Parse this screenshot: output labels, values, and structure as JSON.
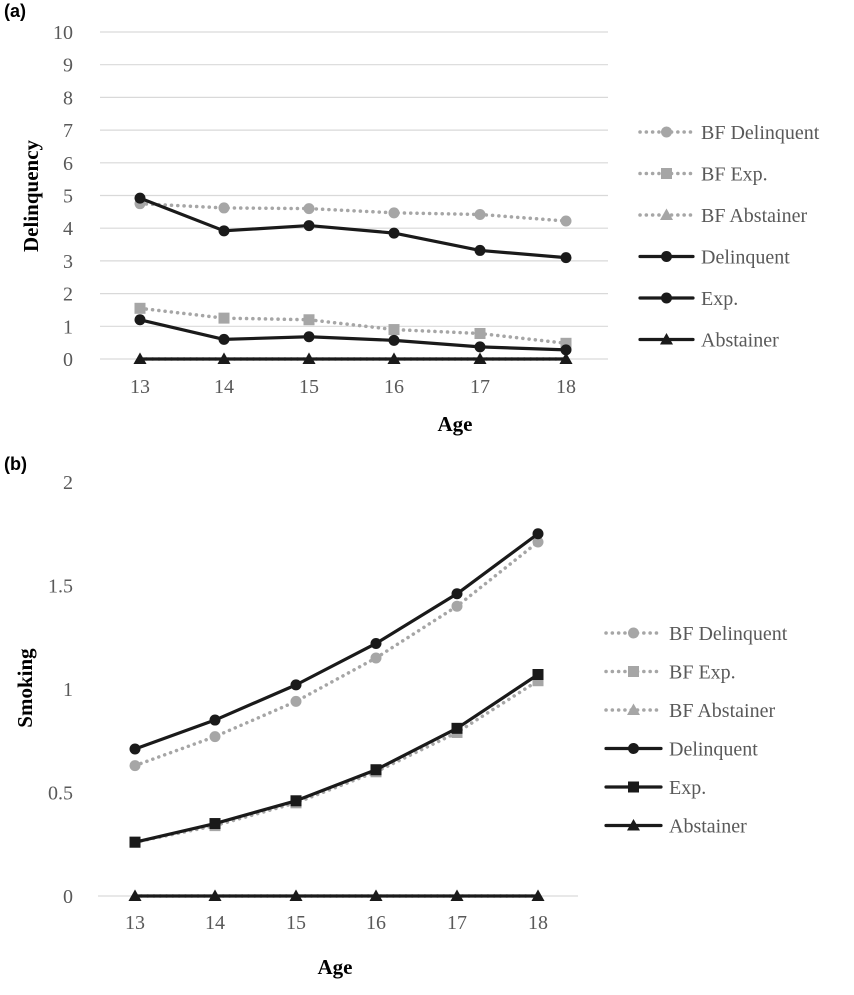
{
  "chart_data": [
    {
      "panel": "(a)",
      "type": "line",
      "xlabel": "Age",
      "ylabel": "Delinquency",
      "x": [
        13,
        14,
        15,
        16,
        17,
        18
      ],
      "ylim": [
        0,
        10
      ],
      "yticks": [
        "0",
        "1",
        "2",
        "3",
        "4",
        "5",
        "6",
        "7",
        "8",
        "9",
        "10"
      ],
      "grid": true,
      "legend_position": "right",
      "series": [
        {
          "name": "BF Delinquent",
          "values": [
            4.75,
            4.62,
            4.6,
            4.47,
            4.42,
            4.22
          ],
          "style": "dotted",
          "marker": "circle",
          "color": "#a6a6a6"
        },
        {
          "name": "BF Exp.",
          "values": [
            1.55,
            1.25,
            1.2,
            0.9,
            0.78,
            0.48
          ],
          "style": "dotted",
          "marker": "square",
          "color": "#a6a6a6"
        },
        {
          "name": "BF Abstainer",
          "values": [
            0,
            0,
            0,
            0,
            0,
            0
          ],
          "style": "dotted",
          "marker": "triangle",
          "color": "#a6a6a6"
        },
        {
          "name": "Delinquent",
          "values": [
            4.92,
            3.92,
            4.08,
            3.85,
            3.32,
            3.1
          ],
          "style": "solid",
          "marker": "circle",
          "color": "#1a1a1a"
        },
        {
          "name": "Exp.",
          "values": [
            1.2,
            0.6,
            0.68,
            0.57,
            0.37,
            0.28
          ],
          "style": "solid",
          "marker": "circle",
          "color": "#1a1a1a"
        },
        {
          "name": "Abstainer",
          "values": [
            0,
            0,
            0,
            0,
            0,
            0
          ],
          "style": "solid",
          "marker": "triangle",
          "color": "#1a1a1a"
        }
      ]
    },
    {
      "panel": "(b)",
      "type": "line",
      "xlabel": "Age",
      "ylabel": "Smoking",
      "x": [
        13,
        14,
        15,
        16,
        17,
        18
      ],
      "ylim": [
        0,
        2
      ],
      "yticks": [
        "0",
        "0.5",
        "1",
        "1.5",
        "2"
      ],
      "grid": false,
      "legend_position": "right",
      "series": [
        {
          "name": "BF Delinquent",
          "values": [
            0.63,
            0.77,
            0.94,
            1.15,
            1.4,
            1.71
          ],
          "style": "dotted",
          "marker": "circle",
          "color": "#a6a6a6"
        },
        {
          "name": "BF Exp.",
          "values": [
            0.26,
            0.34,
            0.45,
            0.6,
            0.79,
            1.04
          ],
          "style": "dotted",
          "marker": "square",
          "color": "#a6a6a6"
        },
        {
          "name": "BF Abstainer",
          "values": [
            0,
            0,
            0,
            0,
            0,
            0
          ],
          "style": "dotted",
          "marker": "triangle",
          "color": "#a6a6a6"
        },
        {
          "name": "Delinquent",
          "values": [
            0.71,
            0.85,
            1.02,
            1.22,
            1.46,
            1.75
          ],
          "style": "solid",
          "marker": "circle",
          "color": "#1a1a1a"
        },
        {
          "name": "Exp.",
          "values": [
            0.26,
            0.35,
            0.46,
            0.61,
            0.81,
            1.07
          ],
          "style": "solid",
          "marker": "square",
          "color": "#1a1a1a"
        },
        {
          "name": "Abstainer",
          "values": [
            0,
            0,
            0,
            0,
            0,
            0
          ],
          "style": "solid",
          "marker": "triangle",
          "color": "#1a1a1a"
        }
      ]
    }
  ]
}
